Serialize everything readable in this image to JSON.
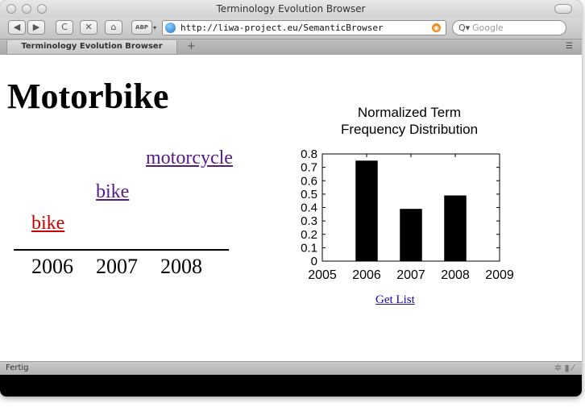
{
  "window": {
    "title": "Terminology Evolution Browser"
  },
  "toolbar": {
    "back_label": "◀",
    "forward_label": "▶",
    "reload_label": "C",
    "stop_label": "✕",
    "home_label": "⌂",
    "adblock_label": "ABP",
    "url": "http://liwa-project.eu/SemanticBrowser",
    "search_placeholder": "Google"
  },
  "tabs": [
    {
      "label": "Terminology Evolution Browser"
    }
  ],
  "page": {
    "heading": "Motorbike",
    "terms": [
      {
        "year": "2008",
        "term": "motorcycle"
      },
      {
        "year": "2007",
        "term": "bike"
      },
      {
        "year": "2006",
        "term": "bike"
      }
    ],
    "timeline_years": [
      "2006",
      "2007",
      "2008"
    ],
    "get_list_label": "Get List"
  },
  "status": {
    "text": "Fertig"
  },
  "colors": {
    "visited_link": "#551a8b",
    "active_term": "#cc0000",
    "link": "#1a0dab"
  },
  "chart_data": {
    "type": "bar",
    "title": "Normalized Term Frequency Distribution",
    "title_lines": [
      "Normalized Term",
      "Frequency Distribution"
    ],
    "x": [
      2006,
      2007,
      2008
    ],
    "values": [
      0.75,
      0.39,
      0.49
    ],
    "xlim": [
      2005,
      2009
    ],
    "ylim": [
      0,
      0.8
    ],
    "xticks": [
      "2005",
      "2006",
      "2007",
      "2008",
      "2009"
    ],
    "yticks": [
      "0",
      "0.1",
      "0.2",
      "0.3",
      "0.4",
      "0.5",
      "0.6",
      "0.7",
      "0.8"
    ],
    "xlabel": "",
    "ylabel": "",
    "bar_color": "#000000",
    "grid": false,
    "legend": false
  }
}
